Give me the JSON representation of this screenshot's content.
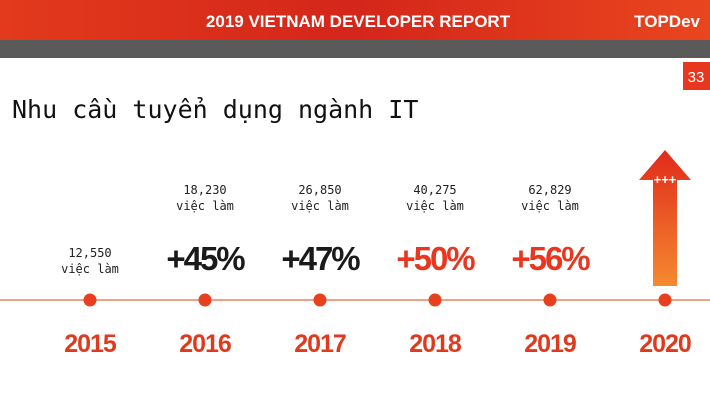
{
  "header": {
    "title": "2019 VIETNAM DEVELOPER REPORT",
    "logo": "TOPDev",
    "page": "33"
  },
  "heading": "Nhu cầu tuyển dụng ngành IT",
  "timeline": [
    {
      "year": "2015",
      "jobs": "12,550",
      "unit": "việc làm"
    },
    {
      "year": "2016",
      "jobs": "18,230",
      "unit": "việc làm",
      "growth": "+45%",
      "color": "#1a1a1a"
    },
    {
      "year": "2017",
      "jobs": "26,850",
      "unit": "việc làm",
      "growth": "+47%",
      "color": "#1a1a1a"
    },
    {
      "year": "2018",
      "jobs": "40,275",
      "unit": "việc làm",
      "growth": "+50%",
      "color": "#e8361f"
    },
    {
      "year": "2019",
      "jobs": "62,829",
      "unit": "việc làm",
      "growth": "+56%",
      "color": "#e8361f"
    },
    {
      "year": "2020",
      "arrow": "+++"
    }
  ]
}
